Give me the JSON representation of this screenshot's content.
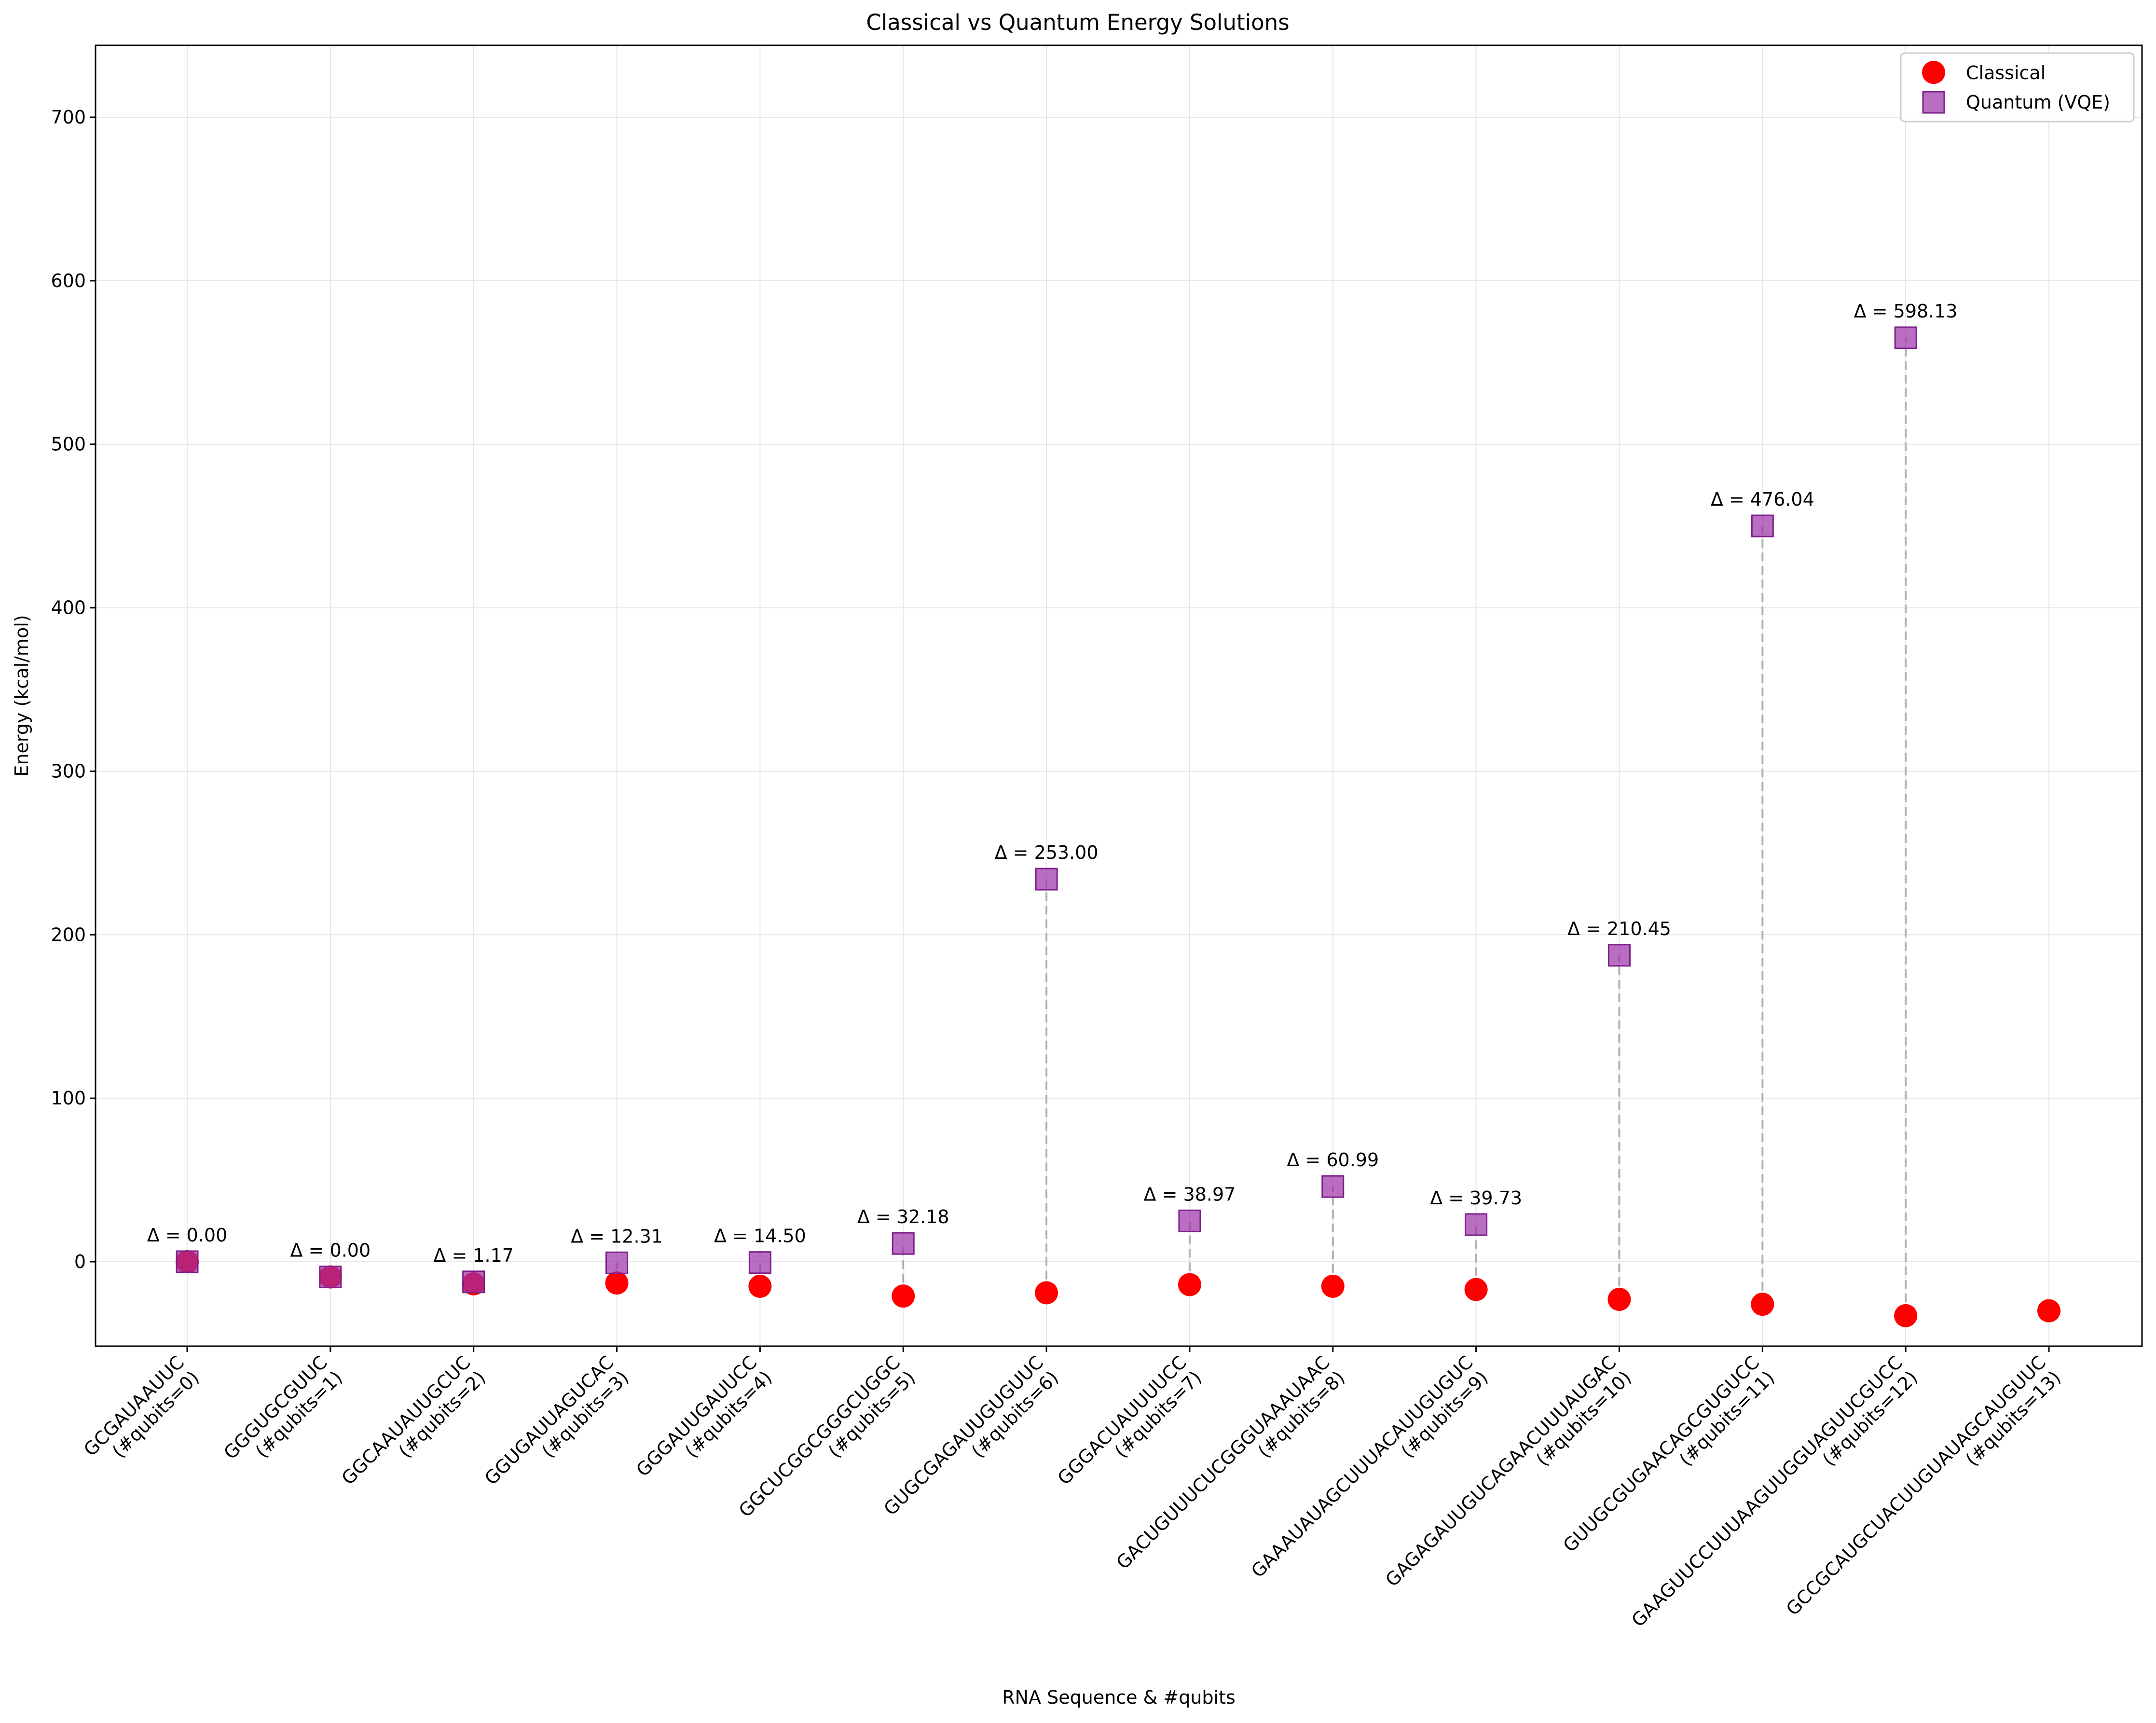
{
  "chart_data": {
    "type": "scatter",
    "title": "Classical vs Quantum Energy Solutions",
    "xlabel": "RNA Sequence & #qubits",
    "ylabel": "Energy (kcal/mol)",
    "ylim": [
      -50,
      745
    ],
    "yticks": [
      0,
      100,
      200,
      300,
      400,
      500,
      600,
      700
    ],
    "grid": true,
    "legend_position": "top-right",
    "categories": [
      {
        "sequence": "GCGAUAAUUC",
        "qubits": "(#qubits=0)"
      },
      {
        "sequence": "GGGUGCGUUC",
        "qubits": "(#qubits=1)"
      },
      {
        "sequence": "GGCAAUAUUGCUC",
        "qubits": "(#qubits=2)"
      },
      {
        "sequence": "GGUGAUUAGUCAC",
        "qubits": "(#qubits=3)"
      },
      {
        "sequence": "GGGAUUGAUUCC",
        "qubits": "(#qubits=4)"
      },
      {
        "sequence": "GGCUCGGCGGGCUGGC",
        "qubits": "(#qubits=5)"
      },
      {
        "sequence": "GUGCGAGAUUGUGUUC",
        "qubits": "(#qubits=6)"
      },
      {
        "sequence": "GGGACUAUUUUCC",
        "qubits": "(#qubits=7)"
      },
      {
        "sequence": "GACUGUUUCUCGGGUAAAUAAC",
        "qubits": "(#qubits=8)"
      },
      {
        "sequence": "GAAAUAUAGCUUUACAUUGUGUC",
        "qubits": "(#qubits=9)"
      },
      {
        "sequence": "GAGAGAUUGUCAGAACUUUAUGAC",
        "qubits": "(#qubits=10)"
      },
      {
        "sequence": "GUUGCGUGAACAGCGUGUCC",
        "qubits": "(#qubits=11)"
      },
      {
        "sequence": "GAAGUUCCUUUAAGUUGGUAGUUCGUCC",
        "qubits": "(#qubits=12)"
      },
      {
        "sequence": "GCCGCAUGCUACUUGUAUAGCAUGUUC",
        "qubits": "(#qubits=13)"
      }
    ],
    "series": [
      {
        "name": "Classical",
        "marker": "circle",
        "color": "#ff0000",
        "values": [
          0.0,
          -9.3,
          -13.5,
          -13.0,
          -15.0,
          -21.0,
          -19.0,
          -14.0,
          -15.0,
          -17.0,
          -23.0,
          -26.0,
          -33.0,
          -30.0
        ]
      },
      {
        "name": "Quantum (VQE)",
        "marker": "square",
        "color": "#9b30a8",
        "values": [
          0.0,
          -9.3,
          -12.33,
          -0.69,
          -0.5,
          11.18,
          234.0,
          24.97,
          45.99,
          22.73,
          187.45,
          450.04,
          565.13,
          null
        ]
      }
    ],
    "annotations": [
      "Δ = 0.00",
      "Δ = 0.00",
      "Δ = 1.17",
      "Δ = 12.31",
      "Δ = 14.50",
      "Δ = 32.18",
      "Δ = 253.00",
      "Δ = 38.97",
      "Δ = 60.99",
      "Δ = 39.73",
      "Δ = 210.45",
      "Δ = 476.04",
      "Δ = 598.13",
      null
    ],
    "connector_color": "#b0b0b0"
  }
}
